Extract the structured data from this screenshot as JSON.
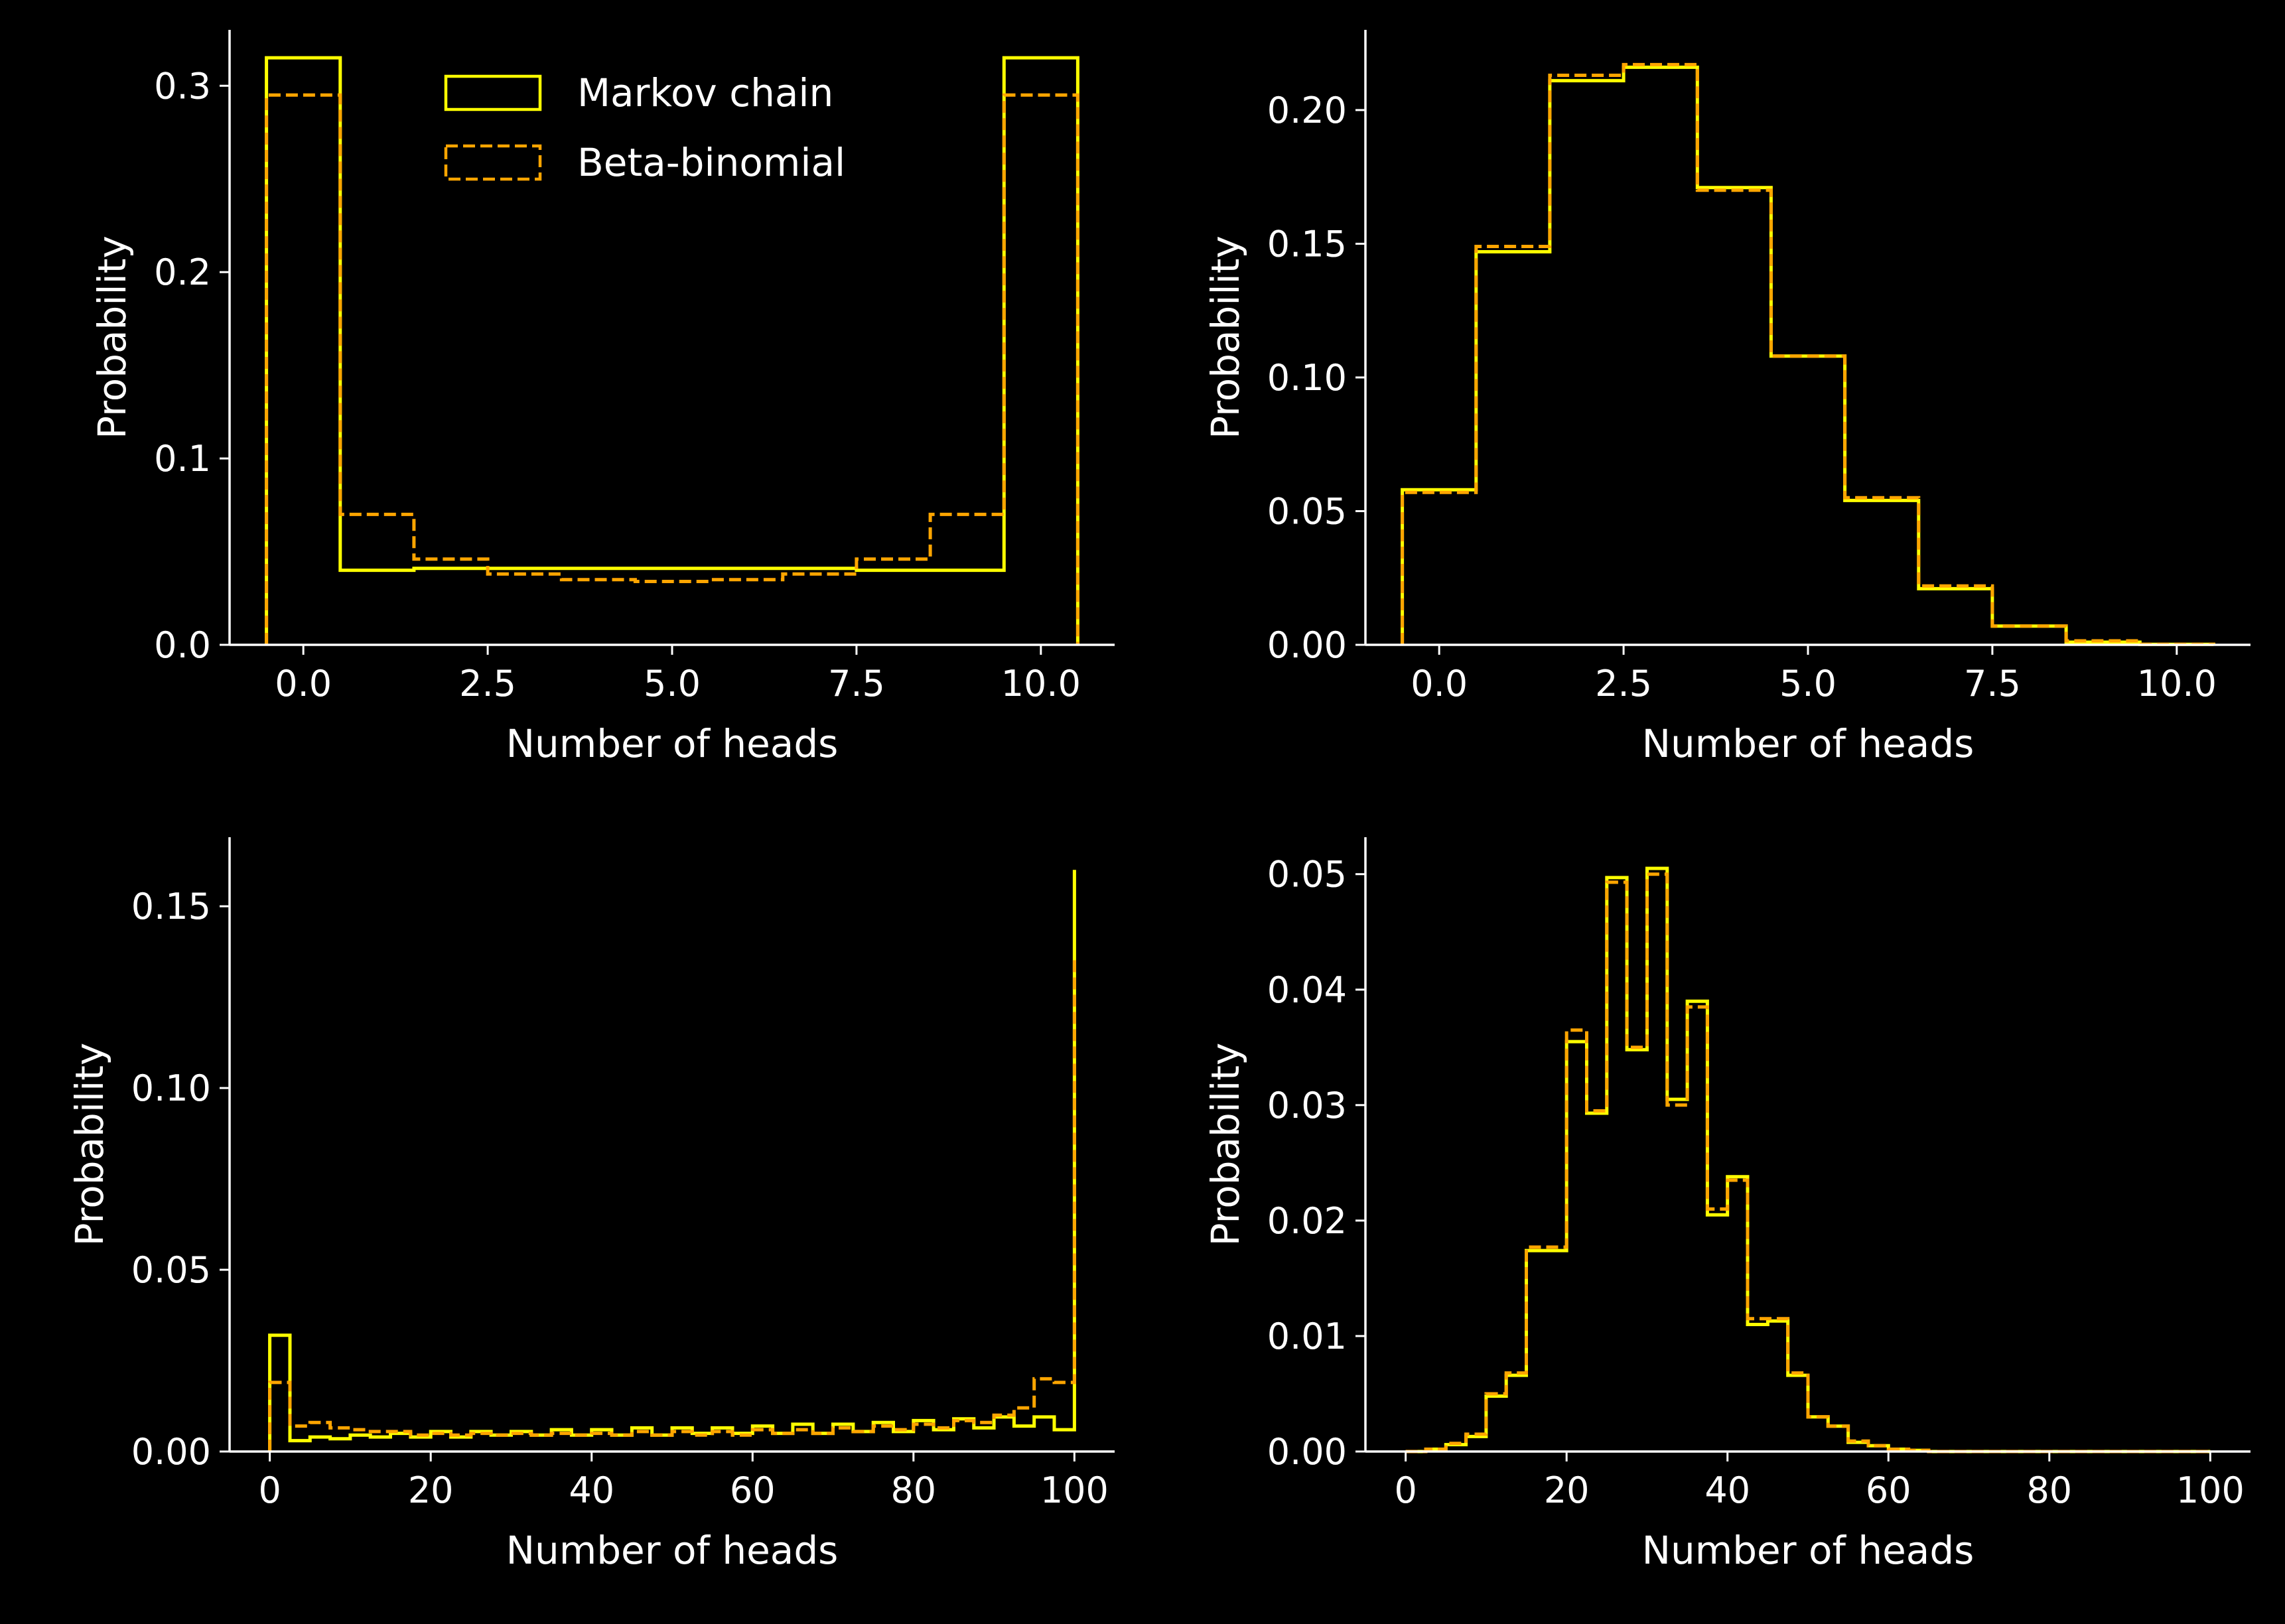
{
  "colors": {
    "background": "#000000",
    "axes": "#ffffff",
    "text": "#ffffff",
    "markov": "#ffff00",
    "beta": "#ffa500"
  },
  "legend": {
    "placement": "top-center",
    "entries": [
      {
        "label": "Markov chain",
        "style": "solid",
        "color": "#ffff00"
      },
      {
        "label": "Beta-binomial",
        "style": "dashed",
        "color": "#ffa500"
      }
    ]
  },
  "chart_data": [
    {
      "type": "step",
      "xlabel": "Number of heads",
      "ylabel": "Probability",
      "xlim": [
        -1.0,
        11.0
      ],
      "ylim": [
        0,
        0.33
      ],
      "xticks": [
        0,
        2.5,
        5,
        7.5,
        10
      ],
      "xtick_labels": [
        "0.0",
        "2.5",
        "5.0",
        "7.5",
        "10.0"
      ],
      "yticks": [
        0,
        0.1,
        0.2,
        0.3
      ],
      "ytick_labels": [
        "0.0",
        "0.1",
        "0.2",
        "0.3"
      ],
      "show_legend": true,
      "grid": false,
      "bin_edges": [
        -0.5,
        0.5,
        1.5,
        2.5,
        3.5,
        4.5,
        5.5,
        6.5,
        7.5,
        8.5,
        9.5,
        10.5
      ],
      "series": [
        {
          "name": "Markov chain",
          "color": "#ffff00",
          "style": "solid",
          "values": [
            0.315,
            0.04,
            0.041,
            0.041,
            0.041,
            0.041,
            0.041,
            0.041,
            0.04,
            0.04,
            0.315
          ]
        },
        {
          "name": "Beta-binomial",
          "color": "#ffa500",
          "style": "dashed",
          "values": [
            0.295,
            0.07,
            0.046,
            0.038,
            0.035,
            0.034,
            0.035,
            0.038,
            0.046,
            0.07,
            0.295
          ]
        }
      ]
    },
    {
      "type": "step",
      "xlabel": "Number of heads",
      "ylabel": "Probability",
      "xlim": [
        -1.0,
        11.0
      ],
      "ylim": [
        0,
        0.23
      ],
      "xticks": [
        0,
        2.5,
        5,
        7.5,
        10
      ],
      "xtick_labels": [
        "0.0",
        "2.5",
        "5.0",
        "7.5",
        "10.0"
      ],
      "yticks": [
        0,
        0.05,
        0.1,
        0.15,
        0.2
      ],
      "ytick_labels": [
        "0.00",
        "0.05",
        "0.10",
        "0.15",
        "0.20"
      ],
      "show_legend": false,
      "grid": false,
      "bin_edges": [
        -0.5,
        0.5,
        1.5,
        2.5,
        3.5,
        4.5,
        5.5,
        6.5,
        7.5,
        8.5,
        9.5,
        10.5
      ],
      "series": [
        {
          "name": "Markov chain",
          "color": "#ffff00",
          "style": "solid",
          "values": [
            0.058,
            0.147,
            0.211,
            0.216,
            0.171,
            0.108,
            0.054,
            0.021,
            0.007,
            0.001,
            0.0002
          ]
        },
        {
          "name": "Beta-binomial",
          "color": "#ffa500",
          "style": "dashed",
          "values": [
            0.057,
            0.149,
            0.213,
            0.217,
            0.17,
            0.108,
            0.055,
            0.022,
            0.007,
            0.0015,
            0.0002
          ]
        }
      ]
    },
    {
      "type": "step",
      "xlabel": "Number of heads",
      "ylabel": "Probability",
      "xlim": [
        -5,
        105
      ],
      "ylim": [
        0,
        0.169
      ],
      "xticks": [
        0,
        20,
        40,
        60,
        80,
        100
      ],
      "xtick_labels": [
        "0",
        "20",
        "40",
        "60",
        "80",
        "100"
      ],
      "yticks": [
        0,
        0.05,
        0.1,
        0.15
      ],
      "ytick_labels": [
        "0.00",
        "0.05",
        "0.10",
        "0.15"
      ],
      "show_legend": false,
      "grid": false,
      "bin_edges": [
        0,
        2.5,
        5,
        7.5,
        10,
        12.5,
        15,
        17.5,
        20,
        22.5,
        25,
        27.5,
        30,
        32.5,
        35,
        37.5,
        40,
        42.5,
        45,
        47.5,
        50,
        52.5,
        55,
        57.5,
        60,
        62.5,
        65,
        67.5,
        70,
        72.5,
        75,
        77.5,
        80,
        82.5,
        85,
        87.5,
        90,
        92.5,
        95,
        97.5,
        100
      ],
      "series": [
        {
          "name": "Markov chain",
          "color": "#ffff00",
          "style": "solid",
          "values": [
            0.032,
            0.003,
            0.004,
            0.0035,
            0.0045,
            0.004,
            0.005,
            0.004,
            0.0055,
            0.004,
            0.0055,
            0.0045,
            0.0055,
            0.0045,
            0.006,
            0.0045,
            0.006,
            0.0045,
            0.0065,
            0.0045,
            0.0065,
            0.005,
            0.0065,
            0.005,
            0.007,
            0.005,
            0.0075,
            0.005,
            0.0075,
            0.0055,
            0.008,
            0.0055,
            0.0085,
            0.006,
            0.009,
            0.0065,
            0.0095,
            0.007,
            0.0095,
            0.006,
            0.16
          ]
        },
        {
          "name": "Beta-binomial",
          "color": "#ffa500",
          "style": "dashed",
          "values": [
            0.019,
            0.007,
            0.008,
            0.0065,
            0.006,
            0.0055,
            0.0055,
            0.0045,
            0.005,
            0.0045,
            0.005,
            0.0045,
            0.005,
            0.0045,
            0.005,
            0.0045,
            0.005,
            0.0045,
            0.0055,
            0.0045,
            0.0055,
            0.0045,
            0.0055,
            0.0045,
            0.006,
            0.005,
            0.006,
            0.005,
            0.0065,
            0.0055,
            0.007,
            0.006,
            0.0075,
            0.0065,
            0.0085,
            0.008,
            0.01,
            0.012,
            0.02,
            0.019,
            0.136
          ]
        }
      ]
    },
    {
      "type": "step",
      "xlabel": "Number of heads",
      "ylabel": "Probability",
      "xlim": [
        -5,
        105
      ],
      "ylim": [
        0,
        0.0532
      ],
      "xticks": [
        0,
        20,
        40,
        60,
        80,
        100
      ],
      "xtick_labels": [
        "0",
        "20",
        "40",
        "60",
        "80",
        "100"
      ],
      "yticks": [
        0,
        0.01,
        0.02,
        0.03,
        0.04,
        0.05
      ],
      "ytick_labels": [
        "0.00",
        "0.01",
        "0.02",
        "0.03",
        "0.04",
        "0.05"
      ],
      "show_legend": false,
      "grid": false,
      "bin_edges": [
        0,
        2.5,
        5,
        7.5,
        10,
        12.5,
        15,
        17.5,
        20,
        22.5,
        25,
        27.5,
        30,
        32.5,
        35,
        37.5,
        40,
        42.5,
        45,
        47.5,
        50,
        52.5,
        55,
        57.5,
        60,
        62.5,
        65,
        67.5,
        70,
        72.5,
        75,
        77.5,
        80,
        82.5,
        85,
        87.5,
        90,
        92.5,
        95,
        97.5,
        100
      ],
      "series": [
        {
          "name": "Markov chain",
          "color": "#ffff00",
          "style": "solid",
          "values": [
            0.0,
            0.0002,
            0.0006,
            0.0013,
            0.0048,
            0.0066,
            0.0174,
            0.0174,
            0.0355,
            0.0293,
            0.0497,
            0.0348,
            0.0505,
            0.0305,
            0.039,
            0.0205,
            0.0238,
            0.011,
            0.0113,
            0.0066,
            0.003,
            0.0022,
            0.0008,
            0.0005,
            0.0002,
            0.0001,
            0.0,
            0.0,
            0.0,
            0.0,
            0.0,
            0.0,
            0.0,
            0.0,
            0.0,
            0.0,
            0.0,
            0.0,
            0.0,
            0.0
          ]
        },
        {
          "name": "Beta-binomial",
          "color": "#ffa500",
          "style": "dashed",
          "values": [
            0.0,
            0.0002,
            0.0007,
            0.0015,
            0.005,
            0.0068,
            0.0177,
            0.0177,
            0.0365,
            0.0295,
            0.0493,
            0.035,
            0.05,
            0.03,
            0.0385,
            0.021,
            0.0235,
            0.0115,
            0.0115,
            0.0068,
            0.003,
            0.0022,
            0.0009,
            0.0005,
            0.0002,
            0.0001,
            0.0,
            0.0,
            0.0,
            0.0,
            0.0,
            0.0,
            0.0,
            0.0,
            0.0,
            0.0,
            0.0,
            0.0,
            0.0,
            0.0
          ]
        }
      ]
    }
  ]
}
